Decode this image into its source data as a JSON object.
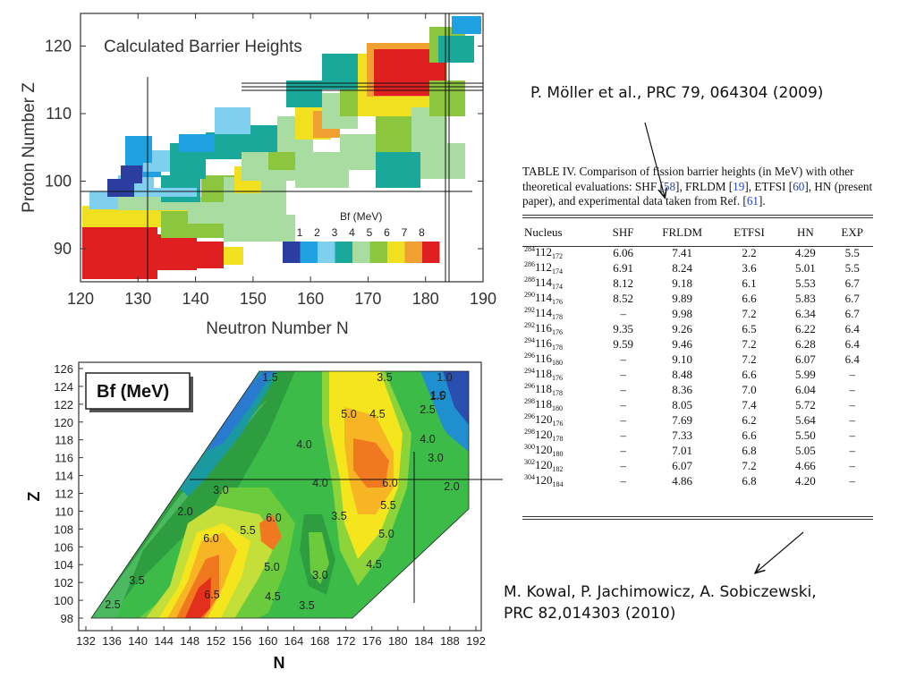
{
  "top_chart": {
    "title": "Calculated Barrier Heights",
    "xlabel": "Neutron Number N",
    "ylabel": "Proton Number Z",
    "x_ticks": [
      "120",
      "130",
      "140",
      "150",
      "160",
      "170",
      "180",
      "190"
    ],
    "y_ticks": [
      "90",
      "100",
      "110",
      "120"
    ],
    "legend_title": "Bf (MeV)",
    "legend_labels": [
      "1",
      "2",
      "3",
      "4",
      "5",
      "6",
      "7",
      "8"
    ],
    "legend_colors": [
      "#2b3ea0",
      "#1fa0e0",
      "#7fd0ee",
      "#1aa89a",
      "#a8dca0",
      "#8cc63f",
      "#f0e020",
      "#f0a030",
      "#e02020"
    ]
  },
  "bottom_chart": {
    "title": "Bf (MeV)",
    "xlabel": "N",
    "ylabel": "Z",
    "x_ticks": [
      "132",
      "136",
      "140",
      "144",
      "148",
      "152",
      "156",
      "160",
      "164",
      "168",
      "172",
      "176",
      "180",
      "184",
      "188",
      "192"
    ],
    "y_ticks": [
      "98",
      "100",
      "102",
      "104",
      "106",
      "108",
      "110",
      "112",
      "114",
      "116",
      "118",
      "120",
      "122",
      "124",
      "126"
    ],
    "contour_labels": [
      "3.5",
      "1.0",
      "1.5",
      "2.5",
      "1.0",
      "5.0",
      "4.5",
      "1.5",
      "4.0",
      "3.0",
      "4.0",
      "6.0",
      "2.0",
      "3.0",
      "4.0",
      "2.0",
      "5.5",
      "6.0",
      "3.5",
      "5.5",
      "6.0",
      "5.0",
      "5.0",
      "3.0",
      "4.5",
      "3.5",
      "6.5",
      "4.5",
      "3.5",
      "2.5"
    ]
  },
  "citations": {
    "moller": "P. Möller et al., PRC 79, 064304 (2009)",
    "kowal_line1": "M. Kowal, P. Jachimowicz, A. Sobiczewski,",
    "kowal_line2": "PRC 82,014303  (2010)"
  },
  "table": {
    "caption_start": "TABLE IV. Comparison of fission barrier heights (in MeV) with other theoretical evaluations: SHF [",
    "ref1": "58",
    "cap2": "], FRLDM [",
    "ref2": "19",
    "cap3": "], ETFSI [",
    "ref3": "60",
    "cap4": "], HN (present paper), and experimental data taken from Ref. [",
    "ref4": "61",
    "cap5": "].",
    "headers": [
      "Nucleus",
      "SHF",
      "FRLDM",
      "ETFSI",
      "HN",
      "EXP"
    ],
    "rows": [
      {
        "A": "284",
        "Z": "112",
        "N": "172",
        "shf": "6.06",
        "frldm": "7.41",
        "etfsi": "2.2",
        "hn": "4.29",
        "exp": "5.5"
      },
      {
        "A": "286",
        "Z": "112",
        "N": "174",
        "shf": "6.91",
        "frldm": "8.24",
        "etfsi": "3.6",
        "hn": "5.01",
        "exp": "5.5"
      },
      {
        "A": "288",
        "Z": "114",
        "N": "174",
        "shf": "8.12",
        "frldm": "9.18",
        "etfsi": "6.1",
        "hn": "5.53",
        "exp": "6.7"
      },
      {
        "A": "290",
        "Z": "114",
        "N": "176",
        "shf": "8.52",
        "frldm": "9.89",
        "etfsi": "6.6",
        "hn": "5.83",
        "exp": "6.7"
      },
      {
        "A": "292",
        "Z": "114",
        "N": "178",
        "shf": "–",
        "frldm": "9.98",
        "etfsi": "7.2",
        "hn": "6.34",
        "exp": "6.7"
      },
      {
        "A": "292",
        "Z": "116",
        "N": "176",
        "shf": "9.35",
        "frldm": "9.26",
        "etfsi": "6.5",
        "hn": "6.22",
        "exp": "6.4"
      },
      {
        "A": "294",
        "Z": "116",
        "N": "178",
        "shf": "9.59",
        "frldm": "9.46",
        "etfsi": "7.2",
        "hn": "6.28",
        "exp": "6.4"
      },
      {
        "A": "296",
        "Z": "116",
        "N": "180",
        "shf": "–",
        "frldm": "9.10",
        "etfsi": "7.2",
        "hn": "6.07",
        "exp": "6.4"
      },
      {
        "A": "294",
        "Z": "118",
        "N": "176",
        "shf": "–",
        "frldm": "8.48",
        "etfsi": "6.6",
        "hn": "5.99",
        "exp": "–"
      },
      {
        "A": "296",
        "Z": "118",
        "N": "178",
        "shf": "–",
        "frldm": "8.36",
        "etfsi": "7.0",
        "hn": "6.04",
        "exp": "–"
      },
      {
        "A": "298",
        "Z": "118",
        "N": "180",
        "shf": "–",
        "frldm": "8.05",
        "etfsi": "7.4",
        "hn": "5.72",
        "exp": "–"
      },
      {
        "A": "296",
        "Z": "120",
        "N": "176",
        "shf": "–",
        "frldm": "7.69",
        "etfsi": "6.2",
        "hn": "5.64",
        "exp": "–"
      },
      {
        "A": "298",
        "Z": "120",
        "N": "178",
        "shf": "–",
        "frldm": "7.33",
        "etfsi": "6.6",
        "hn": "5.50",
        "exp": "–"
      },
      {
        "A": "300",
        "Z": "120",
        "N": "180",
        "shf": "–",
        "frldm": "7.01",
        "etfsi": "6.8",
        "hn": "5.05",
        "exp": "–"
      },
      {
        "A": "302",
        "Z": "120",
        "N": "182",
        "shf": "–",
        "frldm": "6.07",
        "etfsi": "7.2",
        "hn": "4.66",
        "exp": "–"
      },
      {
        "A": "304",
        "Z": "120",
        "N": "184",
        "shf": "–",
        "frldm": "4.86",
        "etfsi": "6.8",
        "hn": "4.20",
        "exp": "–"
      }
    ]
  }
}
